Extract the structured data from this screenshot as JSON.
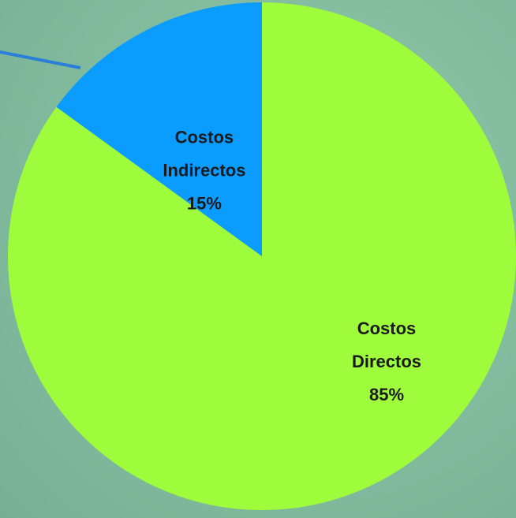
{
  "chart_data": {
    "type": "pie",
    "start_angle_deg": 0,
    "direction": "clockwise",
    "slices": [
      {
        "label_lines": [
          "Costos",
          "Directos",
          "85%"
        ],
        "value": 85,
        "color": "#9efc3c"
      },
      {
        "label_lines": [
          "Costos",
          "Indirectos",
          "15%"
        ],
        "value": 15,
        "color": "#0a9cff"
      }
    ],
    "legend": "none",
    "connector_line_color": "#2a7fd8"
  }
}
